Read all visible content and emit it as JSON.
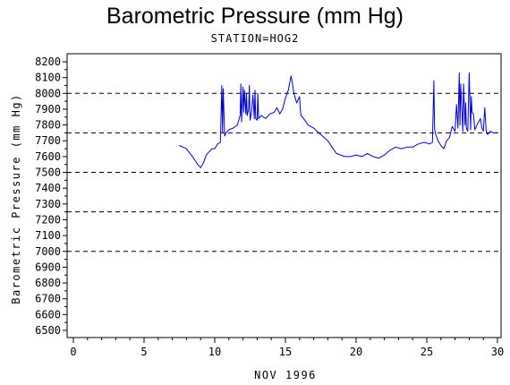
{
  "chart_data": {
    "type": "line",
    "title": "Barometric Pressure (mm Hg)",
    "subtitle": "STATION=HOG2",
    "xlabel": "NOV 1996",
    "ylabel": "Barometric Pressure (mm Hg)",
    "xlim": [
      0,
      30
    ],
    "ylim": [
      6500,
      8200
    ],
    "xticks": [
      0,
      5,
      10,
      15,
      20,
      25,
      30
    ],
    "yticks": [
      6500,
      6600,
      6700,
      6800,
      6900,
      7000,
      7100,
      7200,
      7300,
      7400,
      7500,
      7600,
      7700,
      7800,
      7900,
      8000,
      8100,
      8200
    ],
    "reference_lines": [
      7000,
      7250,
      7500,
      7750,
      8000
    ],
    "line_color": "#0000cc",
    "series": [
      {
        "x": [
          7.5,
          8.0,
          8.5,
          8.8,
          9.0,
          9.2,
          9.4,
          9.6,
          9.8,
          10.0,
          10.2,
          10.4,
          10.5,
          10.55,
          10.6,
          10.7,
          10.8,
          11.0,
          11.3,
          11.6,
          11.8,
          11.85,
          11.9,
          12.0,
          12.05,
          12.1,
          12.2,
          12.25,
          12.3,
          12.4,
          12.45,
          12.5,
          12.6,
          12.7,
          12.8,
          12.85,
          12.9,
          13.0,
          13.05,
          13.1,
          13.3,
          13.6,
          13.9,
          14.2,
          14.4,
          14.6,
          14.8,
          15.0,
          15.2,
          15.4,
          15.5,
          15.6,
          15.8,
          16.0,
          16.05,
          16.1,
          16.3,
          16.6,
          17.0,
          17.5,
          18.0,
          18.3,
          18.6,
          18.9,
          19.2,
          19.6,
          20.0,
          20.4,
          20.8,
          21.2,
          21.6,
          22.0,
          22.4,
          22.8,
          23.2,
          23.6,
          24.0,
          24.4,
          24.8,
          25.2,
          25.4,
          25.5,
          25.55,
          25.6,
          25.8,
          26.0,
          26.2,
          26.4,
          26.6,
          26.8,
          27.0,
          27.1,
          27.2,
          27.3,
          27.35,
          27.4,
          27.5,
          27.55,
          27.6,
          27.7,
          27.75,
          27.8,
          27.9,
          28.0,
          28.1,
          28.15,
          28.2,
          28.3,
          28.4,
          28.6,
          28.8,
          28.9,
          29.0,
          29.1,
          29.2,
          29.3,
          29.5,
          29.7,
          30.0
        ],
        "values": [
          7670,
          7650,
          7590,
          7550,
          7530,
          7560,
          7610,
          7630,
          7650,
          7650,
          7680,
          7690,
          8050,
          7750,
          8030,
          7730,
          7750,
          7770,
          7780,
          7800,
          7860,
          8060,
          7820,
          8040,
          7880,
          8020,
          7870,
          8000,
          7860,
          7900,
          8050,
          7830,
          7880,
          7990,
          7840,
          8020,
          7840,
          7830,
          8000,
          7840,
          7860,
          7840,
          7870,
          7880,
          7910,
          7870,
          7900,
          7970,
          8020,
          8110,
          8060,
          8000,
          7940,
          7980,
          7900,
          7860,
          7840,
          7800,
          7780,
          7740,
          7700,
          7660,
          7620,
          7610,
          7600,
          7600,
          7610,
          7600,
          7620,
          7600,
          7590,
          7610,
          7640,
          7660,
          7650,
          7660,
          7660,
          7680,
          7690,
          7680,
          7690,
          8080,
          7780,
          7750,
          7700,
          7670,
          7650,
          7700,
          7720,
          7790,
          7760,
          7930,
          7780,
          8130,
          7800,
          8060,
          7850,
          7760,
          8060,
          7800,
          7940,
          7780,
          7760,
          8130,
          7770,
          7980,
          7880,
          7870,
          7770,
          7810,
          7840,
          7780,
          7760,
          7910,
          7760,
          7740,
          7760,
          7750,
          7750
        ]
      }
    ]
  }
}
